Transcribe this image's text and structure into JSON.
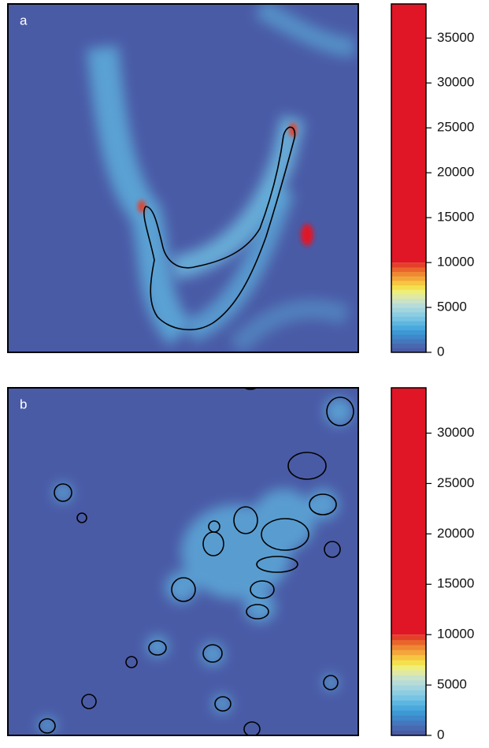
{
  "chart_data": [
    {
      "type": "heatmap",
      "label": "a",
      "clim": [
        0,
        38800
      ],
      "cticks": [
        0,
        5000,
        10000,
        15000,
        20000,
        25000,
        30000,
        35000
      ],
      "levels": [
        0,
        500,
        1000,
        1500,
        2000,
        2500,
        3000,
        3500,
        4000,
        4500,
        5000,
        5500,
        6000,
        6500,
        7000,
        7500,
        8000,
        8500,
        9000,
        9500,
        10000
      ],
      "colors": [
        "#4a5ba6",
        "#4868b0",
        "#4477bd",
        "#3f88c9",
        "#3d98d4",
        "#4aa8dc",
        "#5db6e0",
        "#76c3e3",
        "#8ccde2",
        "#a3d5df",
        "#b7dcd8",
        "#c9e2c8",
        "#dfe9a5",
        "#eeee7a",
        "#f4e04e",
        "#f6c542",
        "#f3a63a",
        "#ef8834",
        "#e9652c",
        "#e3402a"
      ],
      "over_color": "#e01626"
    },
    {
      "type": "heatmap",
      "label": "b",
      "clim": [
        0,
        34500
      ],
      "cticks": [
        0,
        5000,
        10000,
        15000,
        20000,
        25000,
        30000
      ],
      "levels": [
        0,
        500,
        1000,
        1500,
        2000,
        2500,
        3000,
        3500,
        4000,
        4500,
        5000,
        5500,
        6000,
        6500,
        7000,
        7500,
        8000,
        8500,
        9000,
        9500,
        10000
      ],
      "colors": [
        "#4a5ba6",
        "#4868b0",
        "#4477bd",
        "#3f88c9",
        "#3d98d4",
        "#4aa8dc",
        "#5db6e0",
        "#76c3e3",
        "#8ccde2",
        "#a3d5df",
        "#b7dcd8",
        "#c9e2c8",
        "#dfe9a5",
        "#eeee7a",
        "#f4e04e",
        "#f6c542",
        "#f3a63a",
        "#ef8834",
        "#e9652c",
        "#e3402a"
      ],
      "over_color": "#e01626"
    }
  ]
}
